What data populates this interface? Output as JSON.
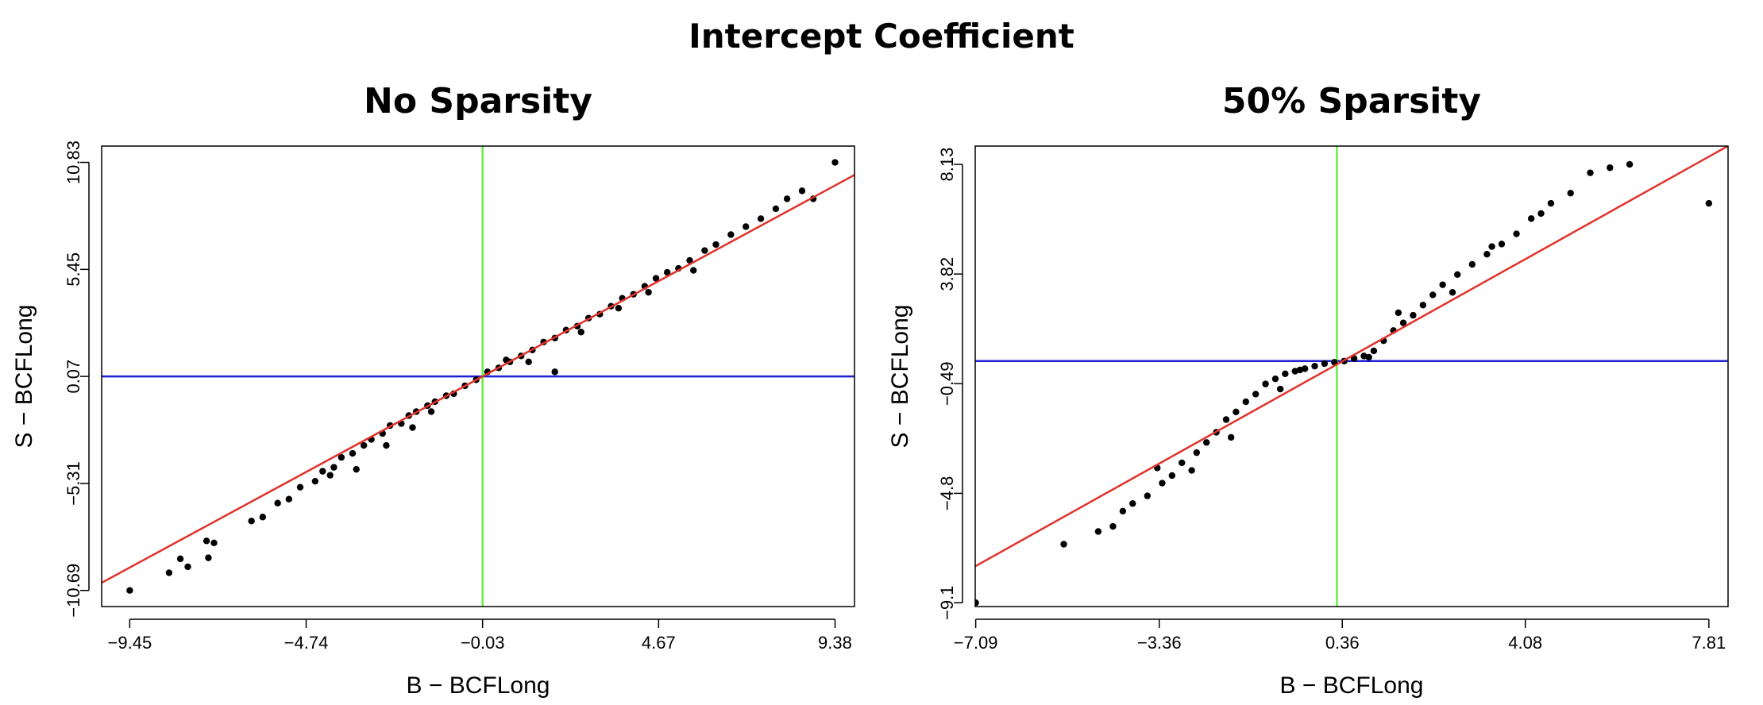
{
  "figure_title": "Intercept Coefficient",
  "colors": {
    "points": "#000000",
    "fit_line": "#e0332a",
    "h_line": "#1f1fd6",
    "v_line": "#66ee44",
    "frame": "#000000"
  },
  "chart_data": [
    {
      "type": "scatter",
      "title": "No Sparsity",
      "xlabel": "B − BCFLong",
      "ylabel": "S − BCFLong",
      "xticks": [
        "-9.45",
        "-4.74",
        "-0.03",
        "4.67",
        "9.38"
      ],
      "xtick_labels": [
        "−9.45",
        "−4.74",
        "−0.03",
        "4.67",
        "9.38"
      ],
      "yticks": [
        "-10.69",
        "-5.31",
        "0.07",
        "5.45",
        "10.83"
      ],
      "ytick_labels": [
        "−10.69",
        "−5.31",
        "0.07",
        "5.45",
        "10.83"
      ],
      "xlim": [
        -10.2,
        9.9
      ],
      "ylim": [
        -11.5,
        11.65
      ],
      "hline": 0.07,
      "vline": -0.03,
      "fit_line": {
        "slope": 1.02,
        "intercept": 0.1
      },
      "points": [
        [
          -9.45,
          -10.69
        ],
        [
          -8.4,
          -9.8
        ],
        [
          -8.1,
          -9.1
        ],
        [
          -7.9,
          -9.5
        ],
        [
          -7.4,
          -8.2
        ],
        [
          -7.2,
          -8.3
        ],
        [
          -7.35,
          -9.05
        ],
        [
          -6.2,
          -7.2
        ],
        [
          -5.9,
          -7.0
        ],
        [
          -5.5,
          -6.3
        ],
        [
          -5.2,
          -6.1
        ],
        [
          -4.9,
          -5.5
        ],
        [
          -4.5,
          -5.2
        ],
        [
          -4.3,
          -4.7
        ],
        [
          -4.0,
          -4.5
        ],
        [
          -3.8,
          -4.0
        ],
        [
          -3.5,
          -3.8
        ],
        [
          -3.2,
          -3.4
        ],
        [
          -3.0,
          -3.1
        ],
        [
          -2.7,
          -2.8
        ],
        [
          -2.5,
          -2.4
        ],
        [
          -2.2,
          -2.3
        ],
        [
          -2.0,
          -1.9
        ],
        [
          -1.8,
          -1.7
        ],
        [
          -1.5,
          -1.4
        ],
        [
          -1.3,
          -1.2
        ],
        [
          -1.0,
          -0.9
        ],
        [
          -0.8,
          -0.8
        ],
        [
          -0.5,
          -0.4
        ],
        [
          -0.2,
          -0.1
        ],
        [
          0.1,
          0.3
        ],
        [
          0.4,
          0.5
        ],
        [
          0.7,
          0.8
        ],
        [
          1.0,
          1.1
        ],
        [
          1.3,
          1.4
        ],
        [
          1.6,
          1.8
        ],
        [
          1.9,
          2.0
        ],
        [
          2.2,
          2.4
        ],
        [
          2.5,
          2.6
        ],
        [
          2.8,
          3.0
        ],
        [
          3.1,
          3.2
        ],
        [
          3.4,
          3.6
        ],
        [
          3.7,
          4.0
        ],
        [
          4.0,
          4.2
        ],
        [
          4.3,
          4.6
        ],
        [
          4.6,
          5.0
        ],
        [
          4.9,
          5.3
        ],
        [
          5.2,
          5.5
        ],
        [
          5.5,
          5.9
        ],
        [
          5.9,
          6.4
        ],
        [
          6.2,
          6.7
        ],
        [
          6.6,
          7.2
        ],
        [
          7.0,
          7.6
        ],
        [
          7.4,
          8.0
        ],
        [
          7.8,
          8.5
        ],
        [
          8.1,
          9.0
        ],
        [
          8.5,
          9.4
        ],
        [
          8.8,
          9.0
        ],
        [
          9.38,
          10.83
        ],
        [
          1.9,
          0.3
        ],
        [
          -3.4,
          -4.6
        ],
        [
          -2.6,
          -3.4
        ],
        [
          -1.4,
          -1.7
        ],
        [
          0.6,
          0.9
        ],
        [
          2.6,
          2.3
        ],
        [
          3.6,
          3.5
        ],
        [
          4.4,
          4.3
        ],
        [
          5.6,
          5.4
        ],
        [
          -4.1,
          -4.9
        ],
        [
          -1.9,
          -2.5
        ],
        [
          1.2,
          0.8
        ]
      ]
    },
    {
      "type": "scatter",
      "title": "50% Sparsity",
      "xlabel": "B − BCFLong",
      "ylabel": "S − BCFLong",
      "xticks": [
        "-7.09",
        "-3.36",
        "0.36",
        "4.08",
        "7.81"
      ],
      "xtick_labels": [
        "−7.09",
        "−3.36",
        "0.36",
        "4.08",
        "7.81"
      ],
      "yticks": [
        "-9.1",
        "-4.8",
        "-0.49",
        "3.82",
        "8.13"
      ],
      "ytick_labels": [
        "−9.1",
        "−4.8",
        "−0.49",
        "3.82",
        "8.13"
      ],
      "xlim": [
        -7.1,
        8.2
      ],
      "ylim": [
        -9.25,
        8.85
      ],
      "hline": 0.4,
      "vline": 0.25,
      "fit_line": {
        "slope": 1.08,
        "intercept": 0.0
      },
      "points": [
        [
          -7.09,
          -9.1
        ],
        [
          -5.3,
          -6.8
        ],
        [
          -4.6,
          -6.3
        ],
        [
          -4.3,
          -6.1
        ],
        [
          -4.1,
          -5.5
        ],
        [
          -3.9,
          -5.2
        ],
        [
          -3.6,
          -4.9
        ],
        [
          -3.3,
          -4.4
        ],
        [
          -3.1,
          -4.1
        ],
        [
          -2.9,
          -3.6
        ],
        [
          -2.6,
          -3.2
        ],
        [
          -2.4,
          -2.8
        ],
        [
          -2.2,
          -2.4
        ],
        [
          -2.0,
          -1.9
        ],
        [
          -1.8,
          -1.6
        ],
        [
          -1.6,
          -1.2
        ],
        [
          -1.4,
          -0.9
        ],
        [
          -1.2,
          -0.5
        ],
        [
          -1.0,
          -0.3
        ],
        [
          -0.8,
          -0.1
        ],
        [
          -0.6,
          0.0
        ],
        [
          -0.4,
          0.1
        ],
        [
          -0.2,
          0.2
        ],
        [
          0.0,
          0.3
        ],
        [
          0.2,
          0.35
        ],
        [
          0.4,
          0.4
        ],
        [
          0.6,
          0.5
        ],
        [
          0.8,
          0.6
        ],
        [
          1.0,
          0.8
        ],
        [
          1.2,
          1.2
        ],
        [
          1.4,
          1.6
        ],
        [
          1.6,
          1.9
        ],
        [
          1.8,
          2.2
        ],
        [
          2.0,
          2.6
        ],
        [
          2.2,
          3.0
        ],
        [
          2.4,
          3.4
        ],
        [
          2.7,
          3.8
        ],
        [
          3.0,
          4.2
        ],
        [
          3.3,
          4.6
        ],
        [
          3.6,
          5.0
        ],
        [
          3.9,
          5.4
        ],
        [
          4.2,
          6.0
        ],
        [
          4.6,
          6.6
        ],
        [
          5.0,
          7.0
        ],
        [
          5.4,
          7.8
        ],
        [
          5.8,
          8.0
        ],
        [
          6.2,
          8.13
        ],
        [
          7.81,
          6.6
        ],
        [
          -3.4,
          -3.8
        ],
        [
          -1.9,
          -2.6
        ],
        [
          -0.9,
          -0.7
        ],
        [
          1.5,
          2.3
        ],
        [
          2.6,
          3.1
        ],
        [
          3.4,
          4.9
        ],
        [
          4.4,
          6.2
        ],
        [
          -2.7,
          -3.9
        ],
        [
          -0.5,
          0.05
        ],
        [
          0.9,
          0.55
        ]
      ]
    }
  ]
}
